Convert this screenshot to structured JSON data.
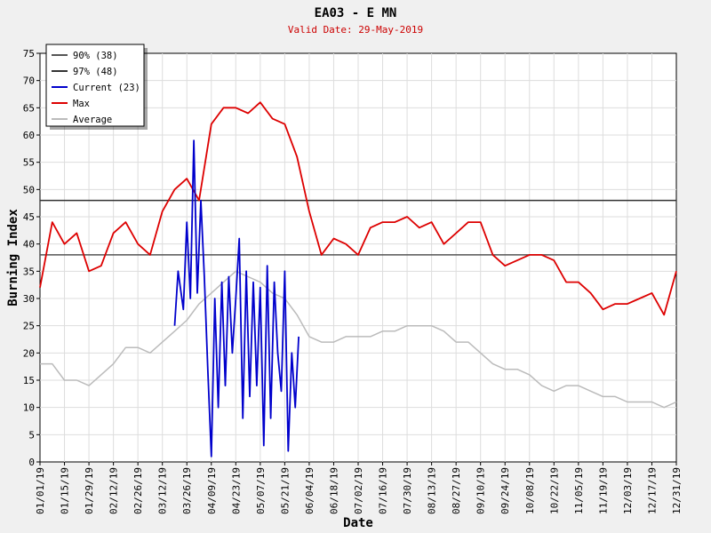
{
  "chart_data": {
    "type": "line",
    "title": "EA03 - E MN",
    "subtitle": "Valid Date: 29-May-2019",
    "xlabel": "Date",
    "ylabel": "Burning Index",
    "ylim": [
      0,
      75
    ],
    "y_ticks": [
      0,
      5,
      10,
      15,
      20,
      25,
      30,
      35,
      40,
      45,
      50,
      55,
      60,
      65,
      70,
      75
    ],
    "x_tick_labels": [
      "01/01/19",
      "01/15/19",
      "01/29/19",
      "02/12/19",
      "02/26/19",
      "03/12/19",
      "03/26/19",
      "04/09/19",
      "04/23/19",
      "05/07/19",
      "05/21/19",
      "06/04/19",
      "06/18/19",
      "07/02/19",
      "07/16/19",
      "07/30/19",
      "08/13/19",
      "08/27/19",
      "09/10/19",
      "09/24/19",
      "10/08/19",
      "10/22/19",
      "11/05/19",
      "11/19/19",
      "12/03/19",
      "12/17/19",
      "12/31/19"
    ],
    "grid": true,
    "legend_placement": "top-left",
    "colors": {
      "p90": "#555555",
      "p97": "#333333",
      "current": "#0000cc",
      "max": "#dd0000",
      "average": "#bbbbbb"
    },
    "legend": [
      {
        "key": "p90",
        "label": "90% (38)"
      },
      {
        "key": "p97",
        "label": "97% (48)"
      },
      {
        "key": "current",
        "label": "Current (23)"
      },
      {
        "key": "max",
        "label": "Max"
      },
      {
        "key": "average",
        "label": "Average"
      }
    ],
    "reference_lines": [
      {
        "key": "p90",
        "value": 38
      },
      {
        "key": "p97",
        "value": 48
      }
    ],
    "series": [
      {
        "key": "max",
        "name": "Max",
        "x": [
          "01/01/19",
          "01/08/19",
          "01/15/19",
          "01/22/19",
          "01/29/19",
          "02/05/19",
          "02/12/19",
          "02/19/19",
          "02/26/19",
          "03/05/19",
          "03/12/19",
          "03/19/19",
          "03/26/19",
          "04/02/19",
          "04/09/19",
          "04/16/19",
          "04/23/19",
          "04/30/19",
          "05/07/19",
          "05/14/19",
          "05/21/19",
          "05/28/19",
          "06/04/19",
          "06/11/19",
          "06/18/19",
          "06/25/19",
          "07/02/19",
          "07/09/19",
          "07/16/19",
          "07/23/19",
          "07/30/19",
          "08/06/19",
          "08/13/19",
          "08/20/19",
          "08/27/19",
          "09/03/19",
          "09/10/19",
          "09/17/19",
          "09/24/19",
          "10/01/19",
          "10/08/19",
          "10/15/19",
          "10/22/19",
          "10/29/19",
          "11/05/19",
          "11/12/19",
          "11/19/19",
          "11/26/19",
          "12/03/19",
          "12/10/19",
          "12/17/19",
          "12/24/19",
          "12/31/19"
        ],
        "values": [
          32,
          44,
          40,
          42,
          35,
          36,
          42,
          44,
          40,
          38,
          46,
          50,
          52,
          48,
          62,
          65,
          65,
          64,
          66,
          63,
          62,
          56,
          46,
          38,
          41,
          40,
          38,
          43,
          44,
          44,
          45,
          43,
          44,
          40,
          42,
          44,
          44,
          38,
          36,
          37,
          38,
          38,
          37,
          33,
          33,
          31,
          28,
          29,
          29,
          30,
          31,
          27,
          35
        ]
      },
      {
        "key": "average",
        "name": "Average",
        "x": [
          "01/01/19",
          "01/08/19",
          "01/15/19",
          "01/22/19",
          "01/29/19",
          "02/05/19",
          "02/12/19",
          "02/19/19",
          "02/26/19",
          "03/05/19",
          "03/12/19",
          "03/19/19",
          "03/26/19",
          "04/02/19",
          "04/09/19",
          "04/16/19",
          "04/23/19",
          "04/30/19",
          "05/07/19",
          "05/14/19",
          "05/21/19",
          "05/28/19",
          "06/04/19",
          "06/11/19",
          "06/18/19",
          "06/25/19",
          "07/02/19",
          "07/09/19",
          "07/16/19",
          "07/23/19",
          "07/30/19",
          "08/06/19",
          "08/13/19",
          "08/20/19",
          "08/27/19",
          "09/03/19",
          "09/10/19",
          "09/17/19",
          "09/24/19",
          "10/01/19",
          "10/08/19",
          "10/15/19",
          "10/22/19",
          "10/29/19",
          "11/05/19",
          "11/12/19",
          "11/19/19",
          "11/26/19",
          "12/03/19",
          "12/10/19",
          "12/17/19",
          "12/24/19",
          "12/31/19"
        ],
        "values": [
          18,
          18,
          15,
          15,
          14,
          16,
          18,
          21,
          21,
          20,
          22,
          24,
          26,
          29,
          31,
          33,
          35,
          34,
          33,
          31,
          30,
          27,
          23,
          22,
          22,
          23,
          23,
          23,
          24,
          24,
          25,
          25,
          25,
          24,
          22,
          22,
          20,
          18,
          17,
          17,
          16,
          14,
          13,
          14,
          14,
          13,
          12,
          12,
          11,
          11,
          11,
          10,
          11
        ]
      },
      {
        "key": "current",
        "name": "Current (23)",
        "x": [
          "03/19/19",
          "03/21/19",
          "03/24/19",
          "03/26/19",
          "03/28/19",
          "03/30/19",
          "04/01/19",
          "04/03/19",
          "04/05/19",
          "04/07/19",
          "04/09/19",
          "04/11/19",
          "04/13/19",
          "04/15/19",
          "04/17/19",
          "04/19/19",
          "04/21/19",
          "04/23/19",
          "04/25/19",
          "04/27/19",
          "04/29/19",
          "05/01/19",
          "05/03/19",
          "05/05/19",
          "05/07/19",
          "05/09/19",
          "05/11/19",
          "05/13/19",
          "05/15/19",
          "05/17/19",
          "05/19/19",
          "05/21/19",
          "05/23/19",
          "05/25/19",
          "05/27/19",
          "05/29/19"
        ],
        "values": [
          25,
          35,
          28,
          44,
          30,
          59,
          31,
          48,
          34,
          17,
          1,
          30,
          10,
          33,
          14,
          34,
          20,
          30,
          41,
          8,
          35,
          12,
          33,
          14,
          32,
          3,
          36,
          8,
          33,
          20,
          13,
          35,
          2,
          20,
          10,
          23
        ]
      }
    ]
  }
}
